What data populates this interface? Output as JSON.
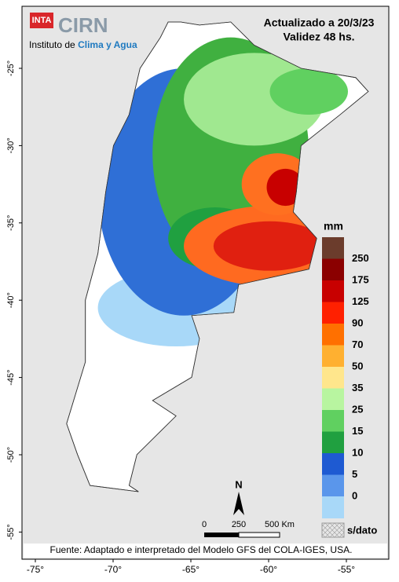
{
  "header": {
    "logo": "INTA",
    "brand": "CIRN",
    "subtitle_plain": "Instituto de",
    "subtitle_highlight": "Clima y Agua",
    "updated": "Actualizado a 20/3/23",
    "validity": "Validez 48 hs."
  },
  "axes": {
    "lat_labels": [
      "-25°",
      "-30°",
      "-35°",
      "-40°",
      "-45°",
      "-50°",
      "-55°"
    ],
    "lon_labels": [
      "-75°",
      "-70°",
      "-65°",
      "-60°",
      "-55°"
    ]
  },
  "legend": {
    "unit": "mm",
    "labels": [
      "250",
      "175",
      "125",
      "90",
      "70",
      "50",
      "35",
      "25",
      "15",
      "10",
      "5",
      "0"
    ],
    "colors": [
      "#6b3c2c",
      "#8b0000",
      "#c80000",
      "#ff2000",
      "#ff7000",
      "#ffb030",
      "#ffe68c",
      "#b8f5a0",
      "#60d060",
      "#20a040",
      "#1e5ad2",
      "#5a96eb",
      "#a8d8f8"
    ],
    "no_data": "s/dato"
  },
  "scale_bar": {
    "labels": [
      "0",
      "250",
      "500 Km"
    ]
  },
  "north": "N",
  "footer": "Fuente: Adaptado e interpretado del Modelo GFS del COLA-IGES, USA."
}
